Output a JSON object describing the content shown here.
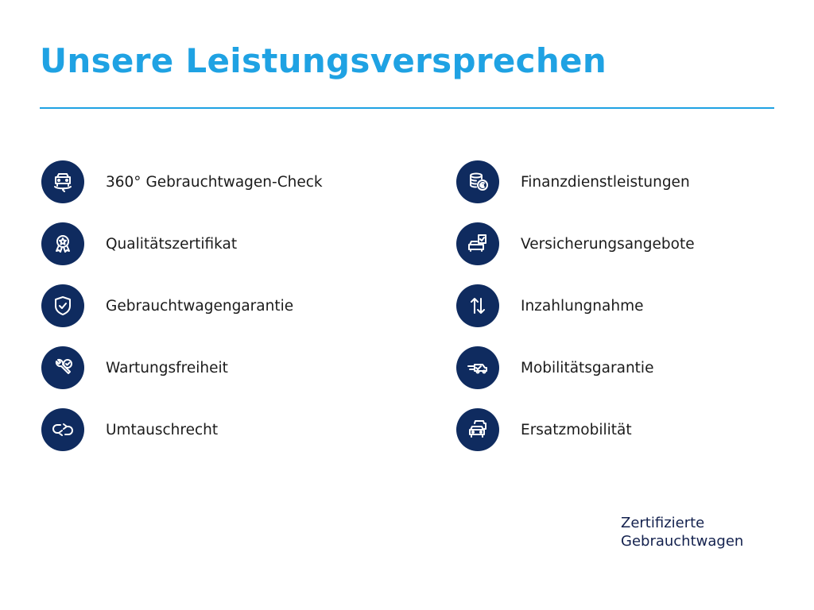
{
  "title": "Unsere Leistungsversprechen",
  "left_items": [
    {
      "label": "360° Gebrauchtwagen-Check",
      "icon": "car-360-icon"
    },
    {
      "label": "Qualitätszertifikat",
      "icon": "award-badge-icon"
    },
    {
      "label": "Gebrauchtwagengarantie",
      "icon": "shield-check-icon"
    },
    {
      "label": "Wartungsfreiheit",
      "icon": "wrench-check-icon"
    },
    {
      "label": "Umtauschrecht",
      "icon": "exchange-arrows-icon"
    }
  ],
  "right_items": [
    {
      "label": "Finanzdienstleistungen",
      "icon": "coins-euro-icon"
    },
    {
      "label": "Versicherungsangebote",
      "icon": "car-document-check-icon"
    },
    {
      "label": "Inzahlungnahme",
      "icon": "up-down-arrows-icon"
    },
    {
      "label": "Mobilitätsgarantie",
      "icon": "tow-truck-icon"
    },
    {
      "label": "Ersatzmobilität",
      "icon": "two-cars-icon"
    }
  ],
  "brand": {
    "line1": "Zertifizierte",
    "line2": "Gebrauchtwagen"
  },
  "colors": {
    "accent": "#1fa2e3",
    "icon_bg": "#0f2b5f",
    "brand_text": "#13214e"
  }
}
